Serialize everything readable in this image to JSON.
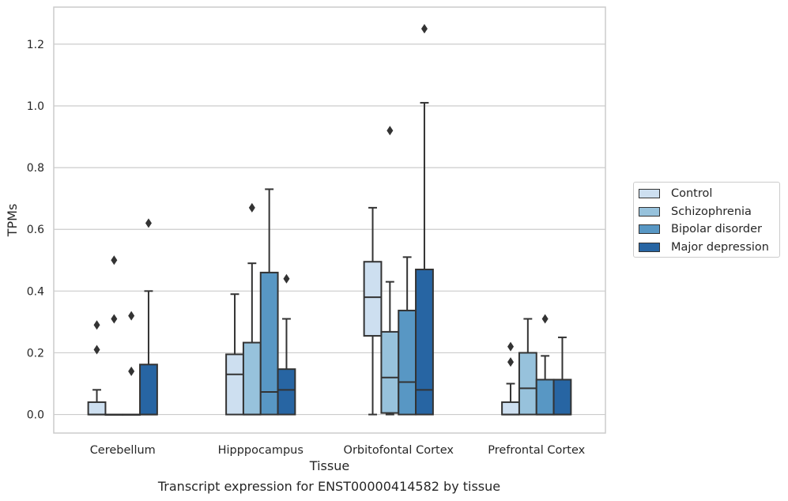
{
  "chart_data": {
    "type": "box",
    "title": "",
    "xlabel": "Tissue",
    "ylabel": "TPMs",
    "caption": "Transcript expression for ENST00000414582 by tissue",
    "ylim": [
      -0.06,
      1.32
    ],
    "yticks": [
      "0.0",
      "0.2",
      "0.4",
      "0.6",
      "0.8",
      "1.0",
      "1.2"
    ],
    "grid": true,
    "legend_position": "right",
    "categories": [
      "Cerebellum",
      "Hipppocampus",
      "Orbitofontal Cortex",
      "Prefrontal Cortex"
    ],
    "series": [
      {
        "name": "Control",
        "color": "#cddff0",
        "boxes": [
          {
            "whislo": 0.0,
            "q1": 0.0,
            "med": 0.0,
            "q3": 0.04,
            "whishi": 0.08,
            "fliers": [
              0.21,
              0.29
            ]
          },
          {
            "whislo": 0.0,
            "q1": 0.0,
            "med": 0.13,
            "q3": 0.195,
            "whishi": 0.39,
            "fliers": []
          },
          {
            "whislo": 0.0,
            "q1": 0.255,
            "med": 0.38,
            "q3": 0.495,
            "whishi": 0.67,
            "fliers": []
          },
          {
            "whislo": 0.0,
            "q1": 0.0,
            "med": 0.0,
            "q3": 0.04,
            "whishi": 0.1,
            "fliers": [
              0.17,
              0.22
            ]
          }
        ]
      },
      {
        "name": "Schizophrenia",
        "color": "#97c2dc",
        "boxes": [
          {
            "whislo": 0.0,
            "q1": 0.0,
            "med": 0.0,
            "q3": 0.0,
            "whishi": 0.0,
            "fliers": [
              0.31,
              0.5
            ]
          },
          {
            "whislo": 0.0,
            "q1": 0.0,
            "med": 0.0,
            "q3": 0.233,
            "whishi": 0.49,
            "fliers": [
              0.67
            ]
          },
          {
            "whislo": 0.0,
            "q1": 0.005,
            "med": 0.12,
            "q3": 0.268,
            "whishi": 0.43,
            "fliers": [
              0.92
            ]
          },
          {
            "whislo": 0.0,
            "q1": 0.0,
            "med": 0.085,
            "q3": 0.2,
            "whishi": 0.31,
            "fliers": []
          }
        ]
      },
      {
        "name": "Bipolar disorder",
        "color": "#5897c4",
        "boxes": [
          {
            "whislo": 0.0,
            "q1": 0.0,
            "med": 0.0,
            "q3": 0.0,
            "whishi": 0.0,
            "fliers": [
              0.14,
              0.32
            ]
          },
          {
            "whislo": 0.0,
            "q1": 0.0,
            "med": 0.073,
            "q3": 0.46,
            "whishi": 0.73,
            "fliers": []
          },
          {
            "whislo": 0.0,
            "q1": 0.0,
            "med": 0.105,
            "q3": 0.337,
            "whishi": 0.51,
            "fliers": []
          },
          {
            "whislo": 0.0,
            "q1": 0.0,
            "med": 0.0,
            "q3": 0.113,
            "whishi": 0.19,
            "fliers": [
              0.31
            ]
          }
        ]
      },
      {
        "name": "Major depression",
        "color": "#2765a3",
        "boxes": [
          {
            "whislo": 0.0,
            "q1": 0.0,
            "med": 0.0,
            "q3": 0.162,
            "whishi": 0.4,
            "fliers": [
              0.62
            ]
          },
          {
            "whislo": 0.0,
            "q1": 0.0,
            "med": 0.08,
            "q3": 0.147,
            "whishi": 0.31,
            "fliers": [
              0.44
            ]
          },
          {
            "whislo": 0.0,
            "q1": 0.0,
            "med": 0.08,
            "q3": 0.47,
            "whishi": 1.01,
            "fliers": [
              1.25
            ]
          },
          {
            "whislo": 0.0,
            "q1": 0.0,
            "med": 0.0,
            "q3": 0.113,
            "whishi": 0.25,
            "fliers": []
          }
        ]
      }
    ]
  }
}
